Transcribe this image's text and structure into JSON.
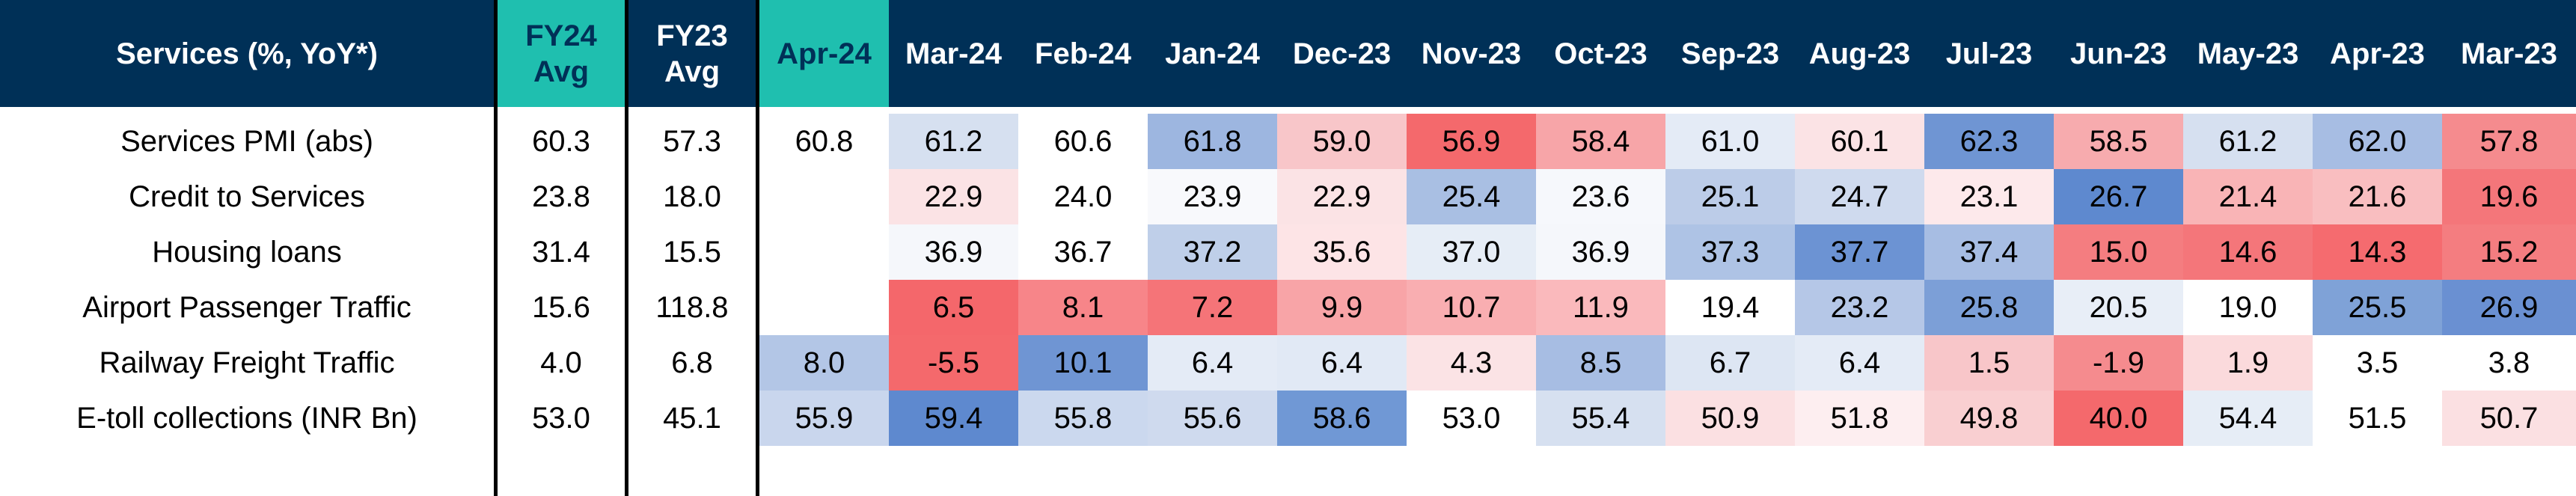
{
  "table": {
    "header_title": "Services (%, YoY*)",
    "fy24_label": [
      "FY24",
      "Avg"
    ],
    "fy23_label": [
      "FY23",
      "Avg"
    ],
    "months": [
      "Apr-24",
      "Mar-24",
      "Feb-24",
      "Jan-24",
      "Dec-23",
      "Nov-23",
      "Oct-23",
      "Sep-23",
      "Aug-23",
      "Jul-23",
      "Jun-23",
      "May-23",
      "Apr-23",
      "Mar-23"
    ],
    "rows": [
      {
        "label": "Services PMI (abs)",
        "fy24": "60.3",
        "fy23": "57.3",
        "values": [
          "60.8",
          "61.2",
          "60.6",
          "61.8",
          "59.0",
          "56.9",
          "58.4",
          "61.0",
          "60.1",
          "62.3",
          "58.5",
          "61.2",
          "62.0",
          "57.8"
        ],
        "colors": [
          "#ffffff",
          "#d6e0f0",
          "#ffffff",
          "#9db6e0",
          "#f8c6c9",
          "#f4696c",
          "#f7a5a8",
          "#e4ebf6",
          "#fbe3e5",
          "#6f95d3",
          "#f7abae",
          "#d6e0f0",
          "#a7bde3",
          "#f58b8e"
        ]
      },
      {
        "label": "Credit to Services",
        "fy24": "23.8",
        "fy23": "18.0",
        "values": [
          "",
          "22.9",
          "24.0",
          "23.9",
          "22.9",
          "25.4",
          "23.6",
          "25.1",
          "24.7",
          "23.1",
          "26.7",
          "21.4",
          "21.6",
          "19.6"
        ],
        "colors": [
          "#ffffff",
          "#fbe3e5",
          "#ffffff",
          "#f8f9fc",
          "#fbe3e5",
          "#a9bfe3",
          "#f6f8fc",
          "#bccce8",
          "#cfdaee",
          "#fde9eb",
          "#5e89cf",
          "#f9b4b6",
          "#f9bec0",
          "#f4767a"
        ]
      },
      {
        "label": "Housing loans",
        "fy24": "31.4",
        "fy23": "15.5",
        "values": [
          "",
          "36.9",
          "36.7",
          "37.2",
          "35.6",
          "37.0",
          "36.9",
          "37.3",
          "37.7",
          "37.4",
          "15.0",
          "14.6",
          "14.3",
          "15.2"
        ],
        "colors": [
          "#ffffff",
          "#f5f7fb",
          "#ffffff",
          "#bfcfe9",
          "#fde4e6",
          "#e6edf6",
          "#f5f7fb",
          "#aec3e5",
          "#6c93d3",
          "#a7bde3",
          "#f47d80",
          "#f4767a",
          "#f56b6f",
          "#f47d80"
        ]
      },
      {
        "label": "Airport Passenger Traffic",
        "fy24": "15.6",
        "fy23": "118.8",
        "values": [
          "",
          "6.5",
          "8.1",
          "7.2",
          "9.9",
          "10.7",
          "11.9",
          "19.4",
          "23.2",
          "25.8",
          "20.5",
          "19.0",
          "25.5",
          "26.9"
        ],
        "colors": [
          "#ffffff",
          "#f4676b",
          "#f78589",
          "#f57478",
          "#f8a4a7",
          "#f9aeb1",
          "#fab9bc",
          "#ffffff",
          "#b5c7e7",
          "#7c9fd7",
          "#e8eef7",
          "#ffffff",
          "#7fa2d7",
          "#6a90d2"
        ]
      },
      {
        "label": "Railway Freight Traffic",
        "fy24": "4.0",
        "fy23": "6.8",
        "values": [
          "8.0",
          "-5.5",
          "10.1",
          "6.4",
          "6.4",
          "4.3",
          "8.5",
          "6.7",
          "6.4",
          "1.5",
          "-1.9",
          "1.9",
          "3.5",
          "3.8"
        ],
        "colors": [
          "#b3c6e6",
          "#f4696c",
          "#6f95d3",
          "#e4ebf6",
          "#e1e9f5",
          "#fbe3e5",
          "#a7bde3",
          "#dde6f3",
          "#e4ebf6",
          "#f8c6c9",
          "#f58b8e",
          "#fbdadc",
          "#ffffff",
          "#ffffff"
        ]
      },
      {
        "label": "E-toll collections (INR Bn)",
        "fy24": "53.0",
        "fy23": "45.1",
        "values": [
          "55.9",
          "59.4",
          "55.8",
          "55.6",
          "58.6",
          "53.0",
          "55.4",
          "50.9",
          "51.8",
          "49.8",
          "40.0",
          "54.4",
          "51.5",
          "50.7"
        ],
        "colors": [
          "#c9d6ed",
          "#5e89cf",
          "#cbd8ee",
          "#cfdaee",
          "#7098d5",
          "#ffffff",
          "#d6e0f0",
          "#fbe0e2",
          "#fdeef0",
          "#f9cfd1",
          "#f4696c",
          "#e6edf6",
          "#ffffff",
          "#fbe0e2"
        ]
      }
    ]
  },
  "colors": {
    "header_navy": "#003057",
    "header_teal": "#1FBFAF"
  }
}
